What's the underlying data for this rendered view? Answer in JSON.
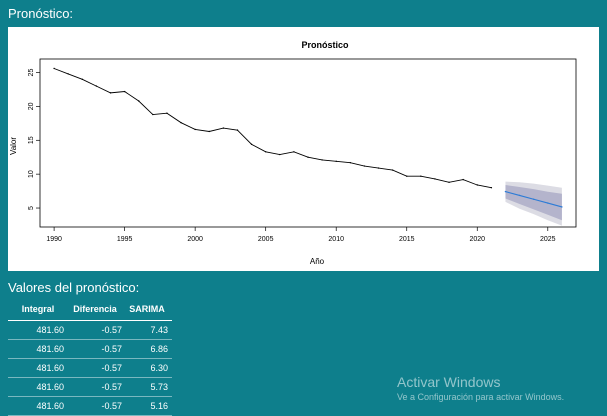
{
  "sections": {
    "forecast_title": "Pronóstico:",
    "values_title": "Valores del pronóstico:"
  },
  "chart_data": {
    "type": "line",
    "title": "Pronóstico",
    "xlabel": "Año",
    "ylabel": "Valor",
    "xlim": [
      1989,
      2027
    ],
    "ylim": [
      2.2,
      27
    ],
    "x_ticks": [
      1990,
      1995,
      2000,
      2005,
      2010,
      2015,
      2020,
      2025
    ],
    "y_ticks": [
      5,
      10,
      15,
      20,
      25
    ],
    "series": [
      {
        "values": [
          {
            "x": 1990,
            "y": 25.6
          },
          {
            "x": 1991,
            "y": 24.8
          },
          {
            "x": 1992,
            "y": 24.0
          },
          {
            "x": 1993,
            "y": 23.0
          },
          {
            "x": 1994,
            "y": 22.0
          },
          {
            "x": 1995,
            "y": 22.2
          },
          {
            "x": 1996,
            "y": 20.8
          },
          {
            "x": 1997,
            "y": 18.8
          },
          {
            "x": 1998,
            "y": 19.0
          },
          {
            "x": 1999,
            "y": 17.6
          },
          {
            "x": 2000,
            "y": 16.6
          },
          {
            "x": 2001,
            "y": 16.3
          },
          {
            "x": 2002,
            "y": 16.8
          },
          {
            "x": 2003,
            "y": 16.5
          },
          {
            "x": 2004,
            "y": 14.4
          },
          {
            "x": 2005,
            "y": 13.3
          },
          {
            "x": 2006,
            "y": 12.9
          },
          {
            "x": 2007,
            "y": 13.3
          },
          {
            "x": 2008,
            "y": 12.5
          },
          {
            "x": 2009,
            "y": 12.1
          },
          {
            "x": 2010,
            "y": 11.9
          },
          {
            "x": 2011,
            "y": 11.7
          },
          {
            "x": 2012,
            "y": 11.2
          },
          {
            "x": 2013,
            "y": 10.9
          },
          {
            "x": 2014,
            "y": 10.6
          },
          {
            "x": 2015,
            "y": 9.7
          },
          {
            "x": 2016,
            "y": 9.7
          },
          {
            "x": 2017,
            "y": 9.3
          },
          {
            "x": 2018,
            "y": 8.8
          },
          {
            "x": 2019,
            "y": 9.2
          },
          {
            "x": 2020,
            "y": 8.4
          },
          {
            "x": 2021,
            "y": 8.0
          }
        ],
        "color": "#000000"
      },
      {
        "values": [
          {
            "x": 2022,
            "y": 7.43
          },
          {
            "x": 2023,
            "y": 6.86
          },
          {
            "x": 2024,
            "y": 6.3
          },
          {
            "x": 2025,
            "y": 5.73
          },
          {
            "x": 2026,
            "y": 5.16
          }
        ],
        "color": "#2c7bd6"
      }
    ],
    "bands": [
      {
        "color": "#dcdce4",
        "x": [
          2022,
          2023,
          2024,
          2025,
          2026
        ],
        "lower": [
          5.9,
          4.9,
          4.1,
          3.2,
          2.4
        ],
        "upper": [
          8.9,
          8.8,
          8.6,
          8.3,
          8.0
        ]
      },
      {
        "color": "#b4b4cc",
        "x": [
          2022,
          2023,
          2024,
          2025,
          2026
        ],
        "lower": [
          6.4,
          5.6,
          4.8,
          4.0,
          3.2
        ],
        "upper": [
          8.4,
          8.1,
          7.8,
          7.4,
          7.1
        ]
      }
    ]
  },
  "table": {
    "headers": [
      "Integral",
      "Diferencia",
      "SARIMA"
    ],
    "rows": [
      [
        "481.60",
        "-0.57",
        "7.43"
      ],
      [
        "481.60",
        "-0.57",
        "6.86"
      ],
      [
        "481.60",
        "-0.57",
        "6.30"
      ],
      [
        "481.60",
        "-0.57",
        "5.73"
      ],
      [
        "481.60",
        "-0.57",
        "5.16"
      ]
    ]
  },
  "watermark": {
    "title": "Activar Windows",
    "subtitle": "Ve a Configuración para activar Windows."
  }
}
